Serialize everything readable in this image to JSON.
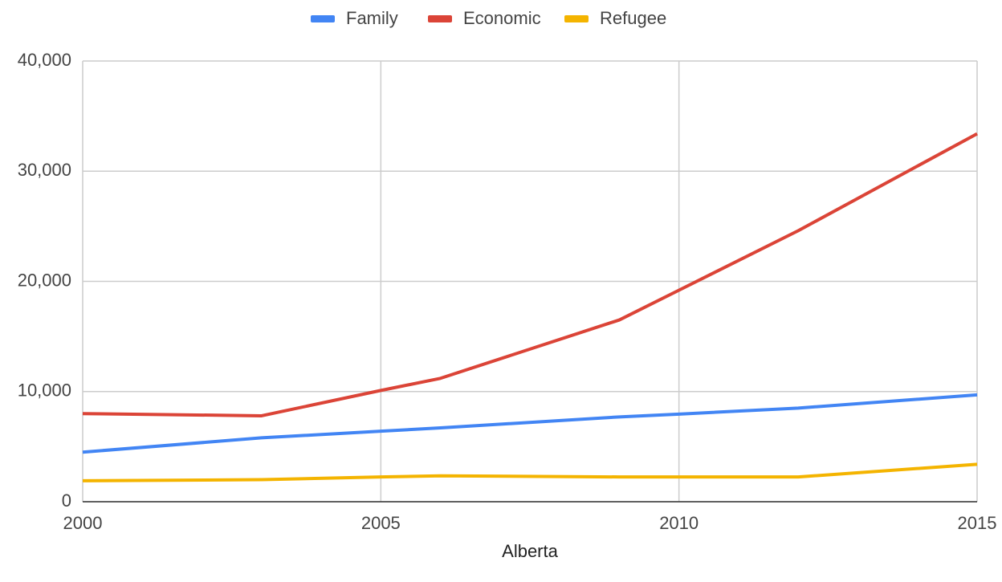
{
  "chart_data": {
    "type": "line",
    "x_label": "Alberta",
    "x": [
      2000,
      2003,
      2005,
      2006,
      2009,
      2010,
      2012,
      2015
    ],
    "series": [
      {
        "name": "Family",
        "color": "#4285f4",
        "values": [
          4500,
          5800,
          6400,
          6700,
          7700,
          7950,
          8500,
          9700
        ]
      },
      {
        "name": "Economic",
        "color": "#db4437",
        "values": [
          8000,
          7800,
          10100,
          11200,
          16500,
          19200,
          24600,
          33400
        ]
      },
      {
        "name": "Refugee",
        "color": "#f4b400",
        "values": [
          1900,
          2000,
          2250,
          2350,
          2250,
          2250,
          2250,
          3400
        ]
      }
    ],
    "xlim": [
      2000,
      2015
    ],
    "xticks": [
      2000,
      2005,
      2010,
      2015
    ],
    "ylim": [
      0,
      40000
    ],
    "yticks": [
      0,
      {
        "value": 10000,
        "label": "10,000"
      },
      {
        "value": 20000,
        "label": "20,000"
      },
      {
        "value": 30000,
        "label": "30,000"
      },
      {
        "value": 40000,
        "label": "40,000"
      }
    ],
    "grid": true,
    "legend": "top"
  }
}
